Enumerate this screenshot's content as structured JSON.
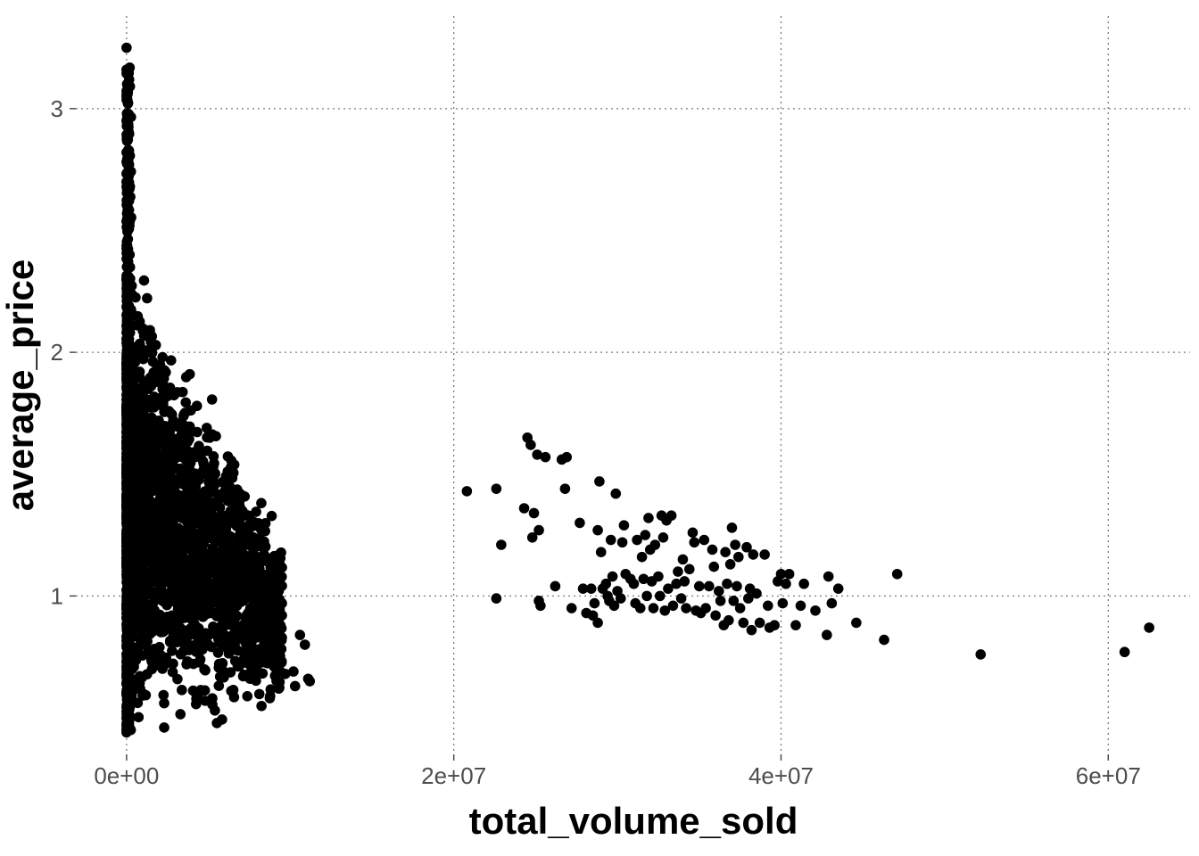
{
  "chart_data": {
    "type": "scatter",
    "title": "",
    "xlabel": "total_volume_sold",
    "ylabel": "average_price",
    "xlim": [
      -3100000,
      65000000
    ],
    "ylim": [
      0.35,
      3.38
    ],
    "x_ticks": [
      0,
      20000000,
      40000000,
      60000000
    ],
    "x_tick_labels": [
      "0e+00",
      "2e+07",
      "4e+07",
      "6e+07"
    ],
    "y_ticks": [
      1,
      2,
      3
    ],
    "y_tick_labels": [
      "1",
      "2",
      "3"
    ],
    "grid": true,
    "point_color": "#000000",
    "series": [
      {
        "values": [
          [
            20800000,
            1.43
          ],
          [
            22600000,
            1.44
          ],
          [
            22900000,
            1.21
          ],
          [
            22600000,
            0.99
          ],
          [
            24300000,
            1.36
          ],
          [
            24500000,
            1.65
          ],
          [
            24700000,
            1.62
          ],
          [
            24800000,
            1.24
          ],
          [
            24900000,
            1.34
          ],
          [
            25200000,
            1.27
          ],
          [
            25100000,
            1.58
          ],
          [
            25600000,
            1.57
          ],
          [
            25200000,
            0.98
          ],
          [
            25300000,
            0.96
          ],
          [
            26200000,
            1.04
          ],
          [
            26600000,
            1.56
          ],
          [
            26900000,
            1.57
          ],
          [
            26800000,
            1.44
          ],
          [
            27200000,
            0.95
          ],
          [
            27700000,
            1.3
          ],
          [
            27900000,
            1.03
          ],
          [
            28100000,
            0.93
          ],
          [
            28400000,
            1.03
          ],
          [
            28500000,
            0.92
          ],
          [
            28600000,
            0.97
          ],
          [
            28800000,
            0.89
          ],
          [
            28800000,
            1.27
          ],
          [
            28900000,
            1.47
          ],
          [
            29000000,
            1.18
          ],
          [
            29100000,
            1.03
          ],
          [
            29300000,
            1.05
          ],
          [
            29400000,
            1.0
          ],
          [
            29500000,
            0.98
          ],
          [
            29600000,
            1.23
          ],
          [
            29700000,
            1.08
          ],
          [
            29800000,
            0.96
          ],
          [
            29900000,
            1.42
          ],
          [
            30000000,
            1.02
          ],
          [
            30200000,
            0.99
          ],
          [
            30300000,
            1.22
          ],
          [
            30400000,
            1.29
          ],
          [
            30500000,
            1.09
          ],
          [
            30800000,
            1.07
          ],
          [
            31000000,
            1.05
          ],
          [
            31100000,
            0.97
          ],
          [
            31200000,
            1.23
          ],
          [
            31400000,
            0.95
          ],
          [
            31500000,
            1.16
          ],
          [
            31600000,
            1.07
          ],
          [
            31700000,
            1.25
          ],
          [
            31800000,
            1.0
          ],
          [
            31900000,
            1.32
          ],
          [
            32000000,
            1.19
          ],
          [
            32100000,
            1.06
          ],
          [
            32200000,
            0.95
          ],
          [
            32300000,
            1.21
          ],
          [
            32500000,
            1.08
          ],
          [
            32600000,
            1.0
          ],
          [
            32700000,
            1.33
          ],
          [
            32800000,
            1.24
          ],
          [
            32900000,
            0.94
          ],
          [
            33000000,
            1.31
          ],
          [
            33100000,
            1.03
          ],
          [
            33300000,
            1.33
          ],
          [
            33400000,
            0.96
          ],
          [
            33600000,
            1.05
          ],
          [
            33700000,
            1.1
          ],
          [
            33900000,
            0.99
          ],
          [
            34000000,
            1.15
          ],
          [
            34100000,
            1.06
          ],
          [
            34200000,
            0.95
          ],
          [
            34400000,
            1.11
          ],
          [
            34600000,
            1.26
          ],
          [
            34700000,
            1.22
          ],
          [
            34800000,
            0.94
          ],
          [
            35000000,
            1.04
          ],
          [
            35100000,
            0.93
          ],
          [
            35300000,
            1.23
          ],
          [
            35400000,
            0.95
          ],
          [
            35600000,
            1.04
          ],
          [
            35800000,
            1.19
          ],
          [
            35900000,
            1.12
          ],
          [
            36000000,
            0.92
          ],
          [
            36200000,
            1.02
          ],
          [
            36300000,
            0.98
          ],
          [
            36500000,
            0.88
          ],
          [
            36600000,
            1.18
          ],
          [
            36700000,
            1.05
          ],
          [
            36800000,
            0.9
          ],
          [
            36900000,
            1.13
          ],
          [
            37000000,
            1.28
          ],
          [
            37100000,
            0.98
          ],
          [
            37200000,
            1.21
          ],
          [
            37300000,
            1.04
          ],
          [
            37400000,
            1.16
          ],
          [
            37500000,
            0.95
          ],
          [
            37700000,
            0.89
          ],
          [
            37900000,
            1.2
          ],
          [
            38000000,
            0.99
          ],
          [
            38100000,
            1.03
          ],
          [
            38200000,
            0.86
          ],
          [
            38300000,
            1.17
          ],
          [
            38500000,
            1.01
          ],
          [
            38700000,
            0.89
          ],
          [
            39000000,
            1.17
          ],
          [
            39200000,
            0.96
          ],
          [
            39300000,
            0.87
          ],
          [
            39600000,
            0.88
          ],
          [
            39800000,
            1.06
          ],
          [
            40000000,
            1.09
          ],
          [
            40100000,
            0.97
          ],
          [
            40300000,
            1.05
          ],
          [
            40500000,
            1.09
          ],
          [
            40900000,
            0.88
          ],
          [
            41200000,
            0.96
          ],
          [
            41400000,
            1.05
          ],
          [
            42100000,
            0.94
          ],
          [
            42800000,
            0.84
          ],
          [
            42900000,
            1.08
          ],
          [
            43100000,
            0.97
          ],
          [
            43500000,
            1.03
          ],
          [
            44600000,
            0.89
          ],
          [
            46300000,
            0.82
          ],
          [
            47100000,
            1.09
          ],
          [
            52200000,
            0.76
          ],
          [
            61000000,
            0.77
          ],
          [
            62500000,
            0.87
          ],
          [
            2200000,
            1.98
          ],
          [
            2200000,
            1.85
          ],
          [
            2500000,
            1.82
          ],
          [
            4300000,
            1.78
          ],
          [
            5300000,
            1.53
          ],
          [
            5300000,
            1.47
          ],
          [
            7400000,
            1.22
          ],
          [
            7700000,
            1.08
          ],
          [
            8300000,
            0.95
          ],
          [
            8800000,
            0.85
          ],
          [
            9400000,
            0.69
          ],
          [
            9700000,
            0.68
          ],
          [
            10200000,
            0.69
          ],
          [
            10300000,
            0.63
          ],
          [
            10600000,
            0.84
          ],
          [
            10900000,
            0.8
          ],
          [
            11100000,
            0.66
          ],
          [
            11200000,
            0.65
          ],
          [
            9300000,
            0.62
          ],
          [
            5400000,
            0.53
          ],
          [
            4800000,
            0.57
          ],
          [
            2300000,
            0.46
          ],
          [
            2300000,
            0.56
          ],
          [
            6400000,
            0.61
          ],
          [
            0,
            3.25
          ],
          [
            0,
            3.16
          ],
          [
            0,
            3.05
          ],
          [
            0,
            2.95
          ],
          [
            0,
            2.82
          ],
          [
            0,
            2.7
          ],
          [
            0,
            0.44
          ],
          [
            0,
            0.47
          ]
        ]
      }
    ]
  }
}
